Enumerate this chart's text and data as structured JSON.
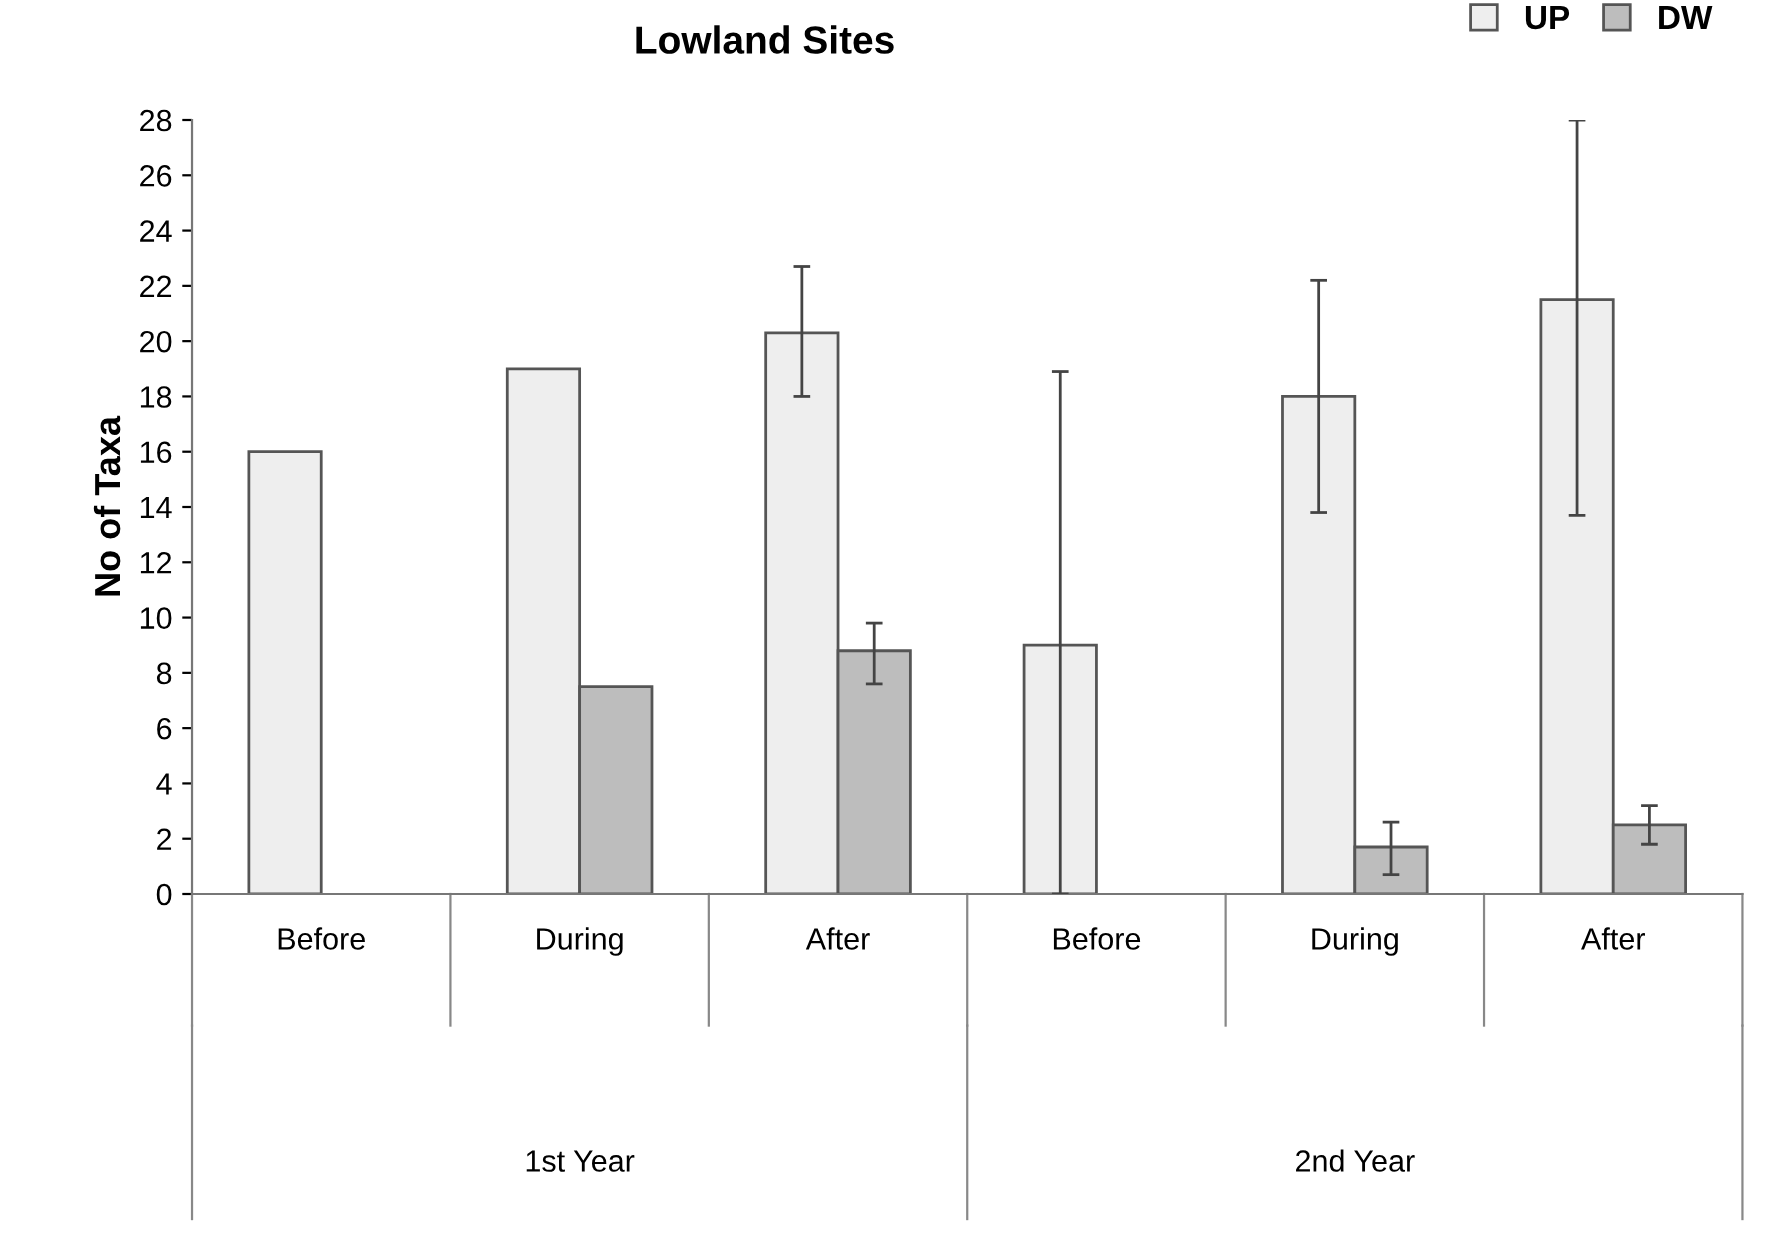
{
  "chart_data": {
    "type": "bar",
    "title": "Lowland Sites",
    "ylabel": "No of Taxa",
    "categories": [
      "Before",
      "During",
      "After",
      "Before",
      "During",
      "After"
    ],
    "annotations": [
      "1st Year",
      "2nd Year"
    ],
    "series": [
      {
        "name": "UP",
        "color": "#eeeeee",
        "values": [
          16,
          19,
          20.3,
          9,
          18,
          21.5
        ],
        "errors": [
          null,
          null,
          [
            18,
            22.7
          ],
          [
            0,
            18.9
          ],
          [
            13.8,
            22.2
          ],
          [
            13.7,
            28
          ]
        ]
      },
      {
        "name": "DW",
        "color": "#bdbdbd",
        "values": [
          null,
          7.5,
          8.8,
          null,
          1.7,
          2.5
        ],
        "errors": [
          null,
          null,
          [
            7.6,
            9.8
          ],
          null,
          [
            0.7,
            2.6
          ],
          [
            1.8,
            3.2
          ]
        ]
      }
    ],
    "ylim": [
      0,
      28
    ],
    "yticks": [
      0,
      2,
      4,
      6,
      8,
      10,
      12,
      14,
      16,
      18,
      20,
      22,
      24,
      26,
      28
    ],
    "grid": false,
    "legend": "top right"
  }
}
